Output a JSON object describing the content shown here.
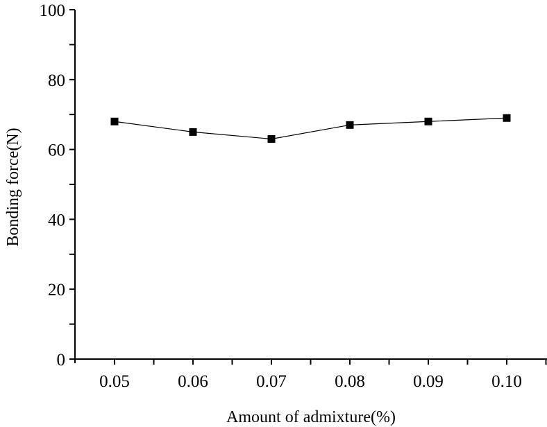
{
  "chart_data": {
    "type": "line",
    "title": "",
    "xlabel": "Amount of admixture(%)",
    "ylabel": "Bonding force(N)",
    "x": [
      0.05,
      0.06,
      0.07,
      0.08,
      0.09,
      0.1
    ],
    "x_tick_labels": [
      "0.05",
      "0.06",
      "0.07",
      "0.08",
      "0.09",
      "0.10"
    ],
    "series": [
      {
        "name": "Bonding force",
        "values": [
          68,
          65,
          63,
          67,
          68,
          69
        ],
        "marker": "square",
        "color": "#000000"
      }
    ],
    "y_ticks": [
      0,
      20,
      40,
      60,
      80,
      100
    ],
    "y_tick_labels": [
      "0",
      "20",
      "40",
      "60",
      "80",
      "100"
    ],
    "ylim": [
      0,
      100
    ],
    "xlim": [
      0.045,
      0.105
    ],
    "grid": false,
    "legend": null
  }
}
